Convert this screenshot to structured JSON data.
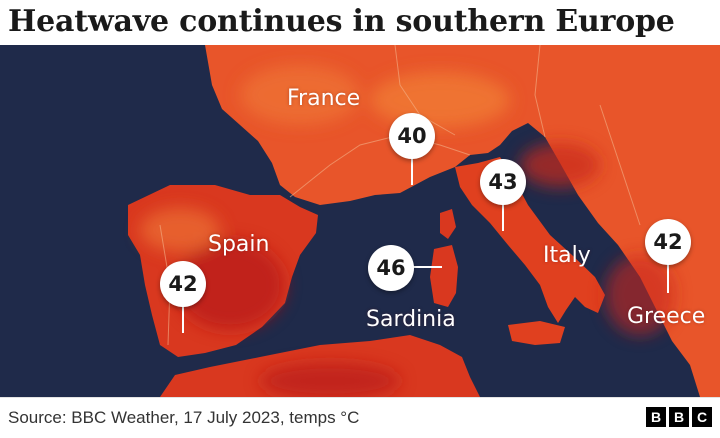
{
  "title": "Heatwave continues in southern Europe",
  "map": {
    "region_labels": {
      "france": "France",
      "spain": "Spain",
      "italy": "Italy",
      "sardinia": "Sardinia",
      "greece": "Greece"
    },
    "temperatures": {
      "france": "40",
      "spain": "42",
      "italy": "43",
      "sardinia": "46",
      "greece": "42"
    },
    "colors": {
      "sea": "#1f2a4a",
      "land_warm": "#e8552a",
      "land_hot": "#d9381f",
      "land_hottest": "#b81e1a",
      "land_cooler": "#f07a35"
    }
  },
  "footer": {
    "source": "Source: BBC Weather, 17 July 2023, temps °C",
    "logo_letters": [
      "B",
      "B",
      "C"
    ]
  }
}
